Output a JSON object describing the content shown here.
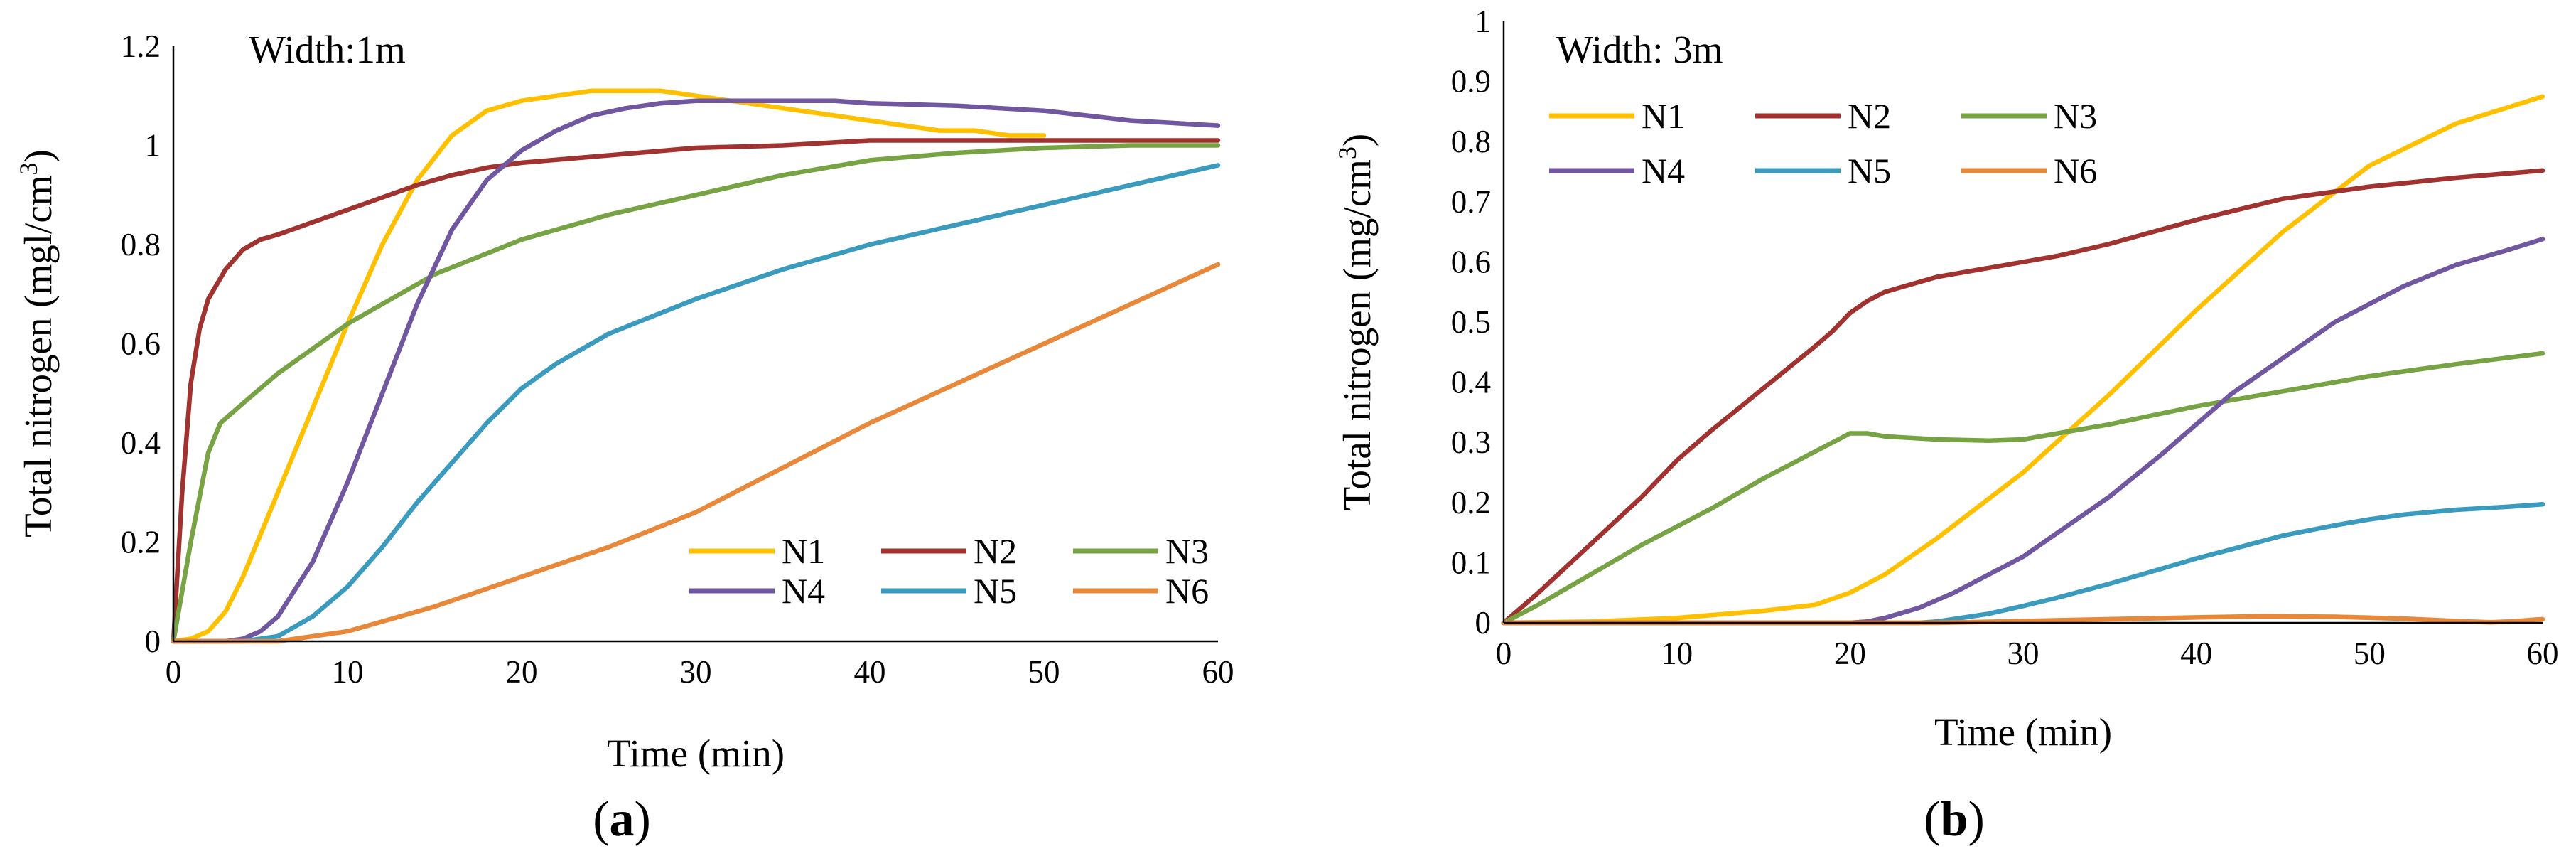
{
  "chart_data": [
    {
      "type": "line",
      "panel_label": "a",
      "title": "Width:1m",
      "xlabel": "Time (min)",
      "ylabel_main": "Total nitrogen (mgl/cm",
      "ylabel_sup": "3",
      "ylabel_end": ")",
      "xlim": [
        0,
        60
      ],
      "ylim": [
        0,
        1.2
      ],
      "xticks": [
        "0",
        "10",
        "20",
        "30",
        "40",
        "50",
        "60"
      ],
      "yticks": [
        "0",
        "0.2",
        "0.4",
        "0.6",
        "0.8",
        "1",
        "1.2"
      ],
      "grid": false,
      "legend_position": "bottom-right",
      "legend_columns": 3,
      "series": [
        {
          "name": "N1",
          "color": "#FFC000",
          "x": [
            0,
            1,
            2,
            3,
            4,
            6,
            8,
            10,
            12,
            14,
            16,
            18,
            20,
            22,
            24,
            26,
            28,
            30,
            32,
            34,
            36,
            38,
            40,
            42,
            44,
            46,
            48,
            50
          ],
          "y": [
            0,
            0.005,
            0.02,
            0.06,
            0.13,
            0.3,
            0.47,
            0.64,
            0.8,
            0.93,
            1.02,
            1.07,
            1.09,
            1.1,
            1.11,
            1.11,
            1.11,
            1.1,
            1.09,
            1.08,
            1.07,
            1.06,
            1.05,
            1.04,
            1.03,
            1.03,
            1.02,
            1.02
          ]
        },
        {
          "name": "N2",
          "color": "#A0332F",
          "x": [
            0,
            0.5,
            1,
            1.5,
            2,
            3,
            4,
            5,
            6,
            8,
            10,
            12,
            14,
            16,
            18,
            20,
            25,
            30,
            35,
            40,
            45,
            50,
            55,
            60
          ],
          "y": [
            0,
            0.3,
            0.52,
            0.63,
            0.69,
            0.75,
            0.79,
            0.81,
            0.82,
            0.845,
            0.87,
            0.895,
            0.92,
            0.94,
            0.955,
            0.965,
            0.98,
            0.995,
            1.0,
            1.01,
            1.01,
            1.01,
            1.01,
            1.01
          ]
        },
        {
          "name": "N3",
          "color": "#77A345",
          "x": [
            0,
            1,
            2,
            2.7,
            4,
            6,
            8,
            10,
            12,
            15,
            20,
            25,
            30,
            35,
            40,
            45,
            50,
            55,
            60
          ],
          "y": [
            0,
            0.2,
            0.38,
            0.44,
            0.48,
            0.54,
            0.59,
            0.64,
            0.68,
            0.74,
            0.81,
            0.86,
            0.9,
            0.94,
            0.97,
            0.985,
            0.995,
            1.0,
            1.0
          ]
        },
        {
          "name": "N4",
          "color": "#7156A0",
          "x": [
            0,
            2,
            3,
            4,
            5,
            6,
            8,
            10,
            12,
            14,
            16,
            18,
            20,
            22,
            24,
            26,
            28,
            30,
            32,
            34,
            36,
            38,
            40,
            45,
            50,
            55,
            60
          ],
          "y": [
            0,
            0,
            0,
            0.005,
            0.02,
            0.05,
            0.16,
            0.32,
            0.5,
            0.68,
            0.83,
            0.93,
            0.99,
            1.03,
            1.06,
            1.075,
            1.085,
            1.09,
            1.09,
            1.09,
            1.09,
            1.09,
            1.085,
            1.08,
            1.07,
            1.05,
            1.04
          ]
        },
        {
          "name": "N5",
          "color": "#3A9BBF",
          "x": [
            0,
            3,
            4,
            5,
            6,
            8,
            10,
            12,
            14,
            16,
            18,
            20,
            22,
            25,
            30,
            35,
            40,
            45,
            50,
            55,
            60
          ],
          "y": [
            0,
            0,
            0,
            0.005,
            0.01,
            0.05,
            0.11,
            0.19,
            0.28,
            0.36,
            0.44,
            0.51,
            0.56,
            0.62,
            0.69,
            0.75,
            0.8,
            0.84,
            0.88,
            0.92,
            0.96
          ]
        },
        {
          "name": "N6",
          "color": "#E8883A",
          "x": [
            0,
            5,
            6,
            8,
            10,
            12,
            15,
            20,
            25,
            30,
            35,
            40,
            45,
            50,
            55,
            60
          ],
          "y": [
            0,
            0,
            0,
            0.01,
            0.02,
            0.04,
            0.07,
            0.13,
            0.19,
            0.26,
            0.35,
            0.44,
            0.52,
            0.6,
            0.68,
            0.76
          ]
        }
      ]
    },
    {
      "type": "line",
      "panel_label": "b",
      "title": "Width: 3m",
      "xlabel": "Time (min)",
      "ylabel_main": "Total nitrogen (mg/cm",
      "ylabel_sup": "3",
      "ylabel_end": ")",
      "xlim": [
        0,
        60
      ],
      "ylim": [
        0,
        1
      ],
      "xticks": [
        "0",
        "10",
        "20",
        "30",
        "40",
        "50",
        "60"
      ],
      "yticks": [
        "0",
        "0.1",
        "0.2",
        "0.3",
        "0.4",
        "0.5",
        "0.6",
        "0.7",
        "0.8",
        "0.9",
        "1"
      ],
      "grid": false,
      "legend_position": "top-left",
      "legend_columns": 3,
      "series": [
        {
          "name": "N1",
          "color": "#FFC000",
          "x": [
            0,
            5,
            10,
            15,
            18,
            19,
            20,
            22,
            25,
            30,
            35,
            40,
            45,
            50,
            55,
            60
          ],
          "y": [
            0,
            0.002,
            0.008,
            0.02,
            0.03,
            0.04,
            0.05,
            0.08,
            0.14,
            0.25,
            0.38,
            0.52,
            0.65,
            0.76,
            0.83,
            0.875
          ]
        },
        {
          "name": "N2",
          "color": "#A0332F",
          "x": [
            0,
            2,
            5,
            8,
            10,
            12,
            15,
            18,
            19,
            20,
            21,
            22,
            25,
            28,
            30,
            32,
            35,
            40,
            45,
            50,
            55,
            60
          ],
          "y": [
            0,
            0.05,
            0.13,
            0.21,
            0.27,
            0.32,
            0.39,
            0.46,
            0.485,
            0.515,
            0.535,
            0.55,
            0.575,
            0.59,
            0.6,
            0.61,
            0.63,
            0.67,
            0.705,
            0.725,
            0.74,
            0.752
          ]
        },
        {
          "name": "N3",
          "color": "#77A345",
          "x": [
            0,
            2,
            5,
            8,
            10,
            12,
            15,
            18,
            19,
            20,
            21,
            22,
            25,
            28,
            30,
            32,
            35,
            40,
            45,
            50,
            55,
            60
          ],
          "y": [
            0,
            0.03,
            0.08,
            0.13,
            0.16,
            0.19,
            0.24,
            0.285,
            0.3,
            0.315,
            0.315,
            0.31,
            0.305,
            0.303,
            0.305,
            0.315,
            0.33,
            0.36,
            0.385,
            0.41,
            0.43,
            0.448
          ]
        },
        {
          "name": "N4",
          "color": "#7156A0",
          "x": [
            0,
            20,
            21,
            22,
            24,
            26,
            28,
            30,
            32,
            35,
            38,
            40,
            42,
            45,
            48,
            50,
            52,
            55,
            58,
            60
          ],
          "y": [
            0,
            0,
            0.002,
            0.008,
            0.025,
            0.05,
            0.08,
            0.11,
            0.15,
            0.21,
            0.28,
            0.33,
            0.38,
            0.44,
            0.5,
            0.53,
            0.56,
            0.595,
            0.62,
            0.638
          ]
        },
        {
          "name": "N5",
          "color": "#3A9BBF",
          "x": [
            0,
            24,
            25,
            28,
            30,
            32,
            35,
            38,
            40,
            42,
            45,
            48,
            50,
            52,
            55,
            58,
            60
          ],
          "y": [
            0,
            0,
            0.002,
            0.015,
            0.028,
            0.042,
            0.065,
            0.09,
            0.107,
            0.122,
            0.145,
            0.162,
            0.172,
            0.18,
            0.188,
            0.193,
            0.197
          ]
        },
        {
          "name": "N6",
          "color": "#E8883A",
          "x": [
            0,
            25,
            30,
            35,
            40,
            44,
            48,
            52,
            55,
            57,
            58,
            60
          ],
          "y": [
            0,
            0,
            0.003,
            0.006,
            0.009,
            0.011,
            0.01,
            0.007,
            0.003,
            0.001,
            0.002,
            0.006
          ]
        }
      ]
    }
  ]
}
